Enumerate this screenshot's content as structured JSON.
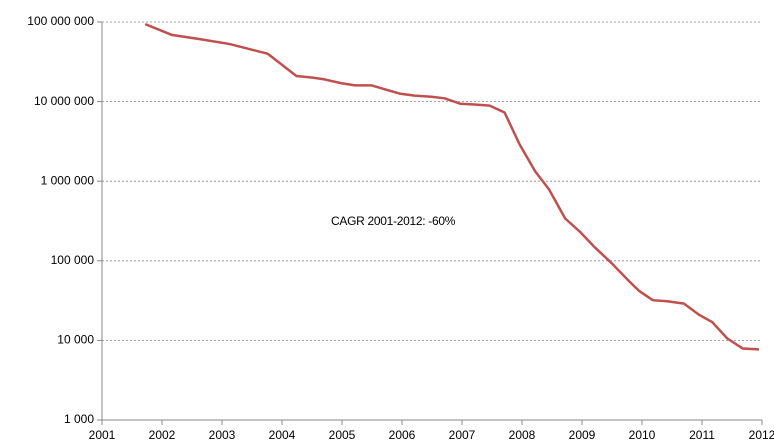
{
  "chart_data": {
    "type": "line",
    "annotation": "CAGR 2001-2012:  -60%",
    "x": [
      2001.72,
      2002.16,
      2002.63,
      2003.12,
      2003.76,
      2004.24,
      2004.51,
      2004.71,
      2004.99,
      2005.22,
      2005.49,
      2005.96,
      2006.21,
      2006.49,
      2006.71,
      2006.97,
      2007.21,
      2007.46,
      2007.71,
      2007.96,
      2008.22,
      2008.45,
      2008.72,
      2008.97,
      2009.22,
      2009.49,
      2009.79,
      2009.95,
      2010.18,
      2010.42,
      2010.7,
      2010.95,
      2011.17,
      2011.42,
      2011.68,
      2011.95
    ],
    "series": [
      {
        "color": "#c0504d",
        "values": [
          94000000,
          69000000,
          61000000,
          53000000,
          40000000,
          21000000,
          20000000,
          19000000,
          17000000,
          16000000,
          16000000,
          12600000,
          11900000,
          11500000,
          11000000,
          9400000,
          9200000,
          8900000,
          7300000,
          2900000,
          1330000,
          790000,
          340000,
          230000,
          146000,
          94000,
          55000,
          42000,
          32000,
          31000,
          29000,
          21000,
          17000,
          10600,
          7900,
          7700
        ]
      }
    ],
    "xlim": [
      2001,
      2012
    ],
    "xticks": [
      2001,
      2002,
      2003,
      2004,
      2005,
      2006,
      2007,
      2008,
      2009,
      2010,
      2011,
      2012
    ],
    "ylim": [
      1000,
      100000000
    ],
    "ylog": true,
    "grid": true,
    "yticks": [
      {
        "value": 1000,
        "label": "1 000"
      },
      {
        "value": 10000,
        "label": "10 000"
      },
      {
        "value": 100000,
        "label": "100 000"
      },
      {
        "value": 1000000,
        "label": "1 000 000"
      },
      {
        "value": 10000000,
        "label": "10 000 000"
      },
      {
        "value": 100000000,
        "label": "100 000 000"
      }
    ]
  }
}
